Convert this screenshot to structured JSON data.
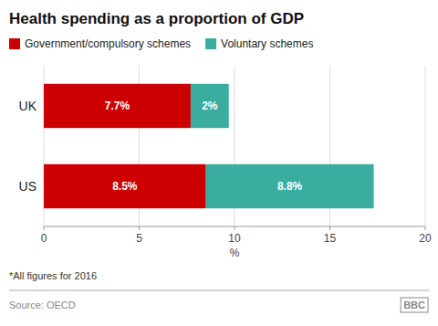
{
  "chart_data": {
    "type": "bar",
    "title": "Health spending as a proportion of GDP",
    "orientation": "horizontal",
    "stacked": true,
    "categories": [
      "UK",
      "US"
    ],
    "series": [
      {
        "name": "Government/compulsory schemes",
        "color": "#cc0000",
        "values": [
          7.7,
          8.5
        ],
        "value_labels": [
          "7.7%",
          "8.5%"
        ]
      },
      {
        "name": "Voluntary schemes",
        "color": "#3aada0",
        "values": [
          2.0,
          8.8
        ],
        "value_labels": [
          "2%",
          "8.8%"
        ]
      }
    ],
    "data_labels": true,
    "xlim": [
      0,
      20
    ],
    "xticks": [
      0,
      5,
      10,
      15,
      20
    ],
    "xlabel": "%",
    "grid": true,
    "legend": "top",
    "annotations": [
      "*All figures for 2016",
      "Source: OECD",
      "BBC"
    ]
  }
}
